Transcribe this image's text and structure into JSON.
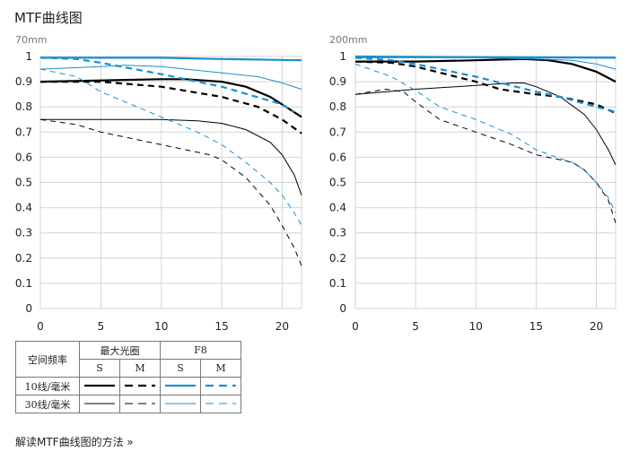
{
  "title": "MTF曲线图",
  "link": "解读MTF曲线图的方法 »",
  "colors": {
    "black": "#000000",
    "blue": "#1a8fd0",
    "grid": "#d4d4d4"
  },
  "legend": {
    "header_freq": "空间频率",
    "header_max": "最大光圈",
    "header_f8": "F8",
    "s": "S",
    "m": "M",
    "row10": "10线/毫米",
    "row30": "30线/毫米"
  },
  "chart_data": [
    {
      "type": "line",
      "title": "70mm",
      "xlim": [
        0,
        21.6
      ],
      "ylim": [
        0,
        1
      ],
      "xticks": [
        "0",
        "5",
        "10",
        "15",
        "20"
      ],
      "yticks": [
        "0",
        "0.1",
        "0.2",
        "0.3",
        "0.4",
        "0.5",
        "0.6",
        "0.7",
        "0.8",
        "0.9",
        "1"
      ],
      "series": [
        {
          "name": "最大光圈 S 10线/毫米",
          "color": "black",
          "width": 2.2,
          "dash": false,
          "points": [
            [
              0,
              0.9
            ],
            [
              5,
              0.905
            ],
            [
              10,
              0.91
            ],
            [
              12,
              0.91
            ],
            [
              15,
              0.9
            ],
            [
              17,
              0.88
            ],
            [
              19,
              0.84
            ],
            [
              20,
              0.81
            ],
            [
              21.6,
              0.76
            ]
          ]
        },
        {
          "name": "最大光圈 M 10线/毫米",
          "color": "black",
          "width": 2.2,
          "dash": true,
          "points": [
            [
              0,
              0.9
            ],
            [
              5,
              0.9
            ],
            [
              10,
              0.88
            ],
            [
              15,
              0.84
            ],
            [
              18,
              0.8
            ],
            [
              20,
              0.75
            ],
            [
              21.6,
              0.695
            ]
          ]
        },
        {
          "name": "最大光圈 S 30线/毫米",
          "color": "black",
          "width": 1,
          "dash": false,
          "points": [
            [
              0,
              0.75
            ],
            [
              5,
              0.75
            ],
            [
              10,
              0.75
            ],
            [
              13,
              0.745
            ],
            [
              15,
              0.735
            ],
            [
              17,
              0.71
            ],
            [
              19,
              0.66
            ],
            [
              20,
              0.61
            ],
            [
              21,
              0.53
            ],
            [
              21.6,
              0.45
            ]
          ]
        },
        {
          "name": "最大光圈 M 30线/毫米",
          "color": "black",
          "width": 1,
          "dash": true,
          "points": [
            [
              0,
              0.75
            ],
            [
              3,
              0.73
            ],
            [
              5,
              0.7
            ],
            [
              10,
              0.65
            ],
            [
              14,
              0.61
            ],
            [
              15,
              0.59
            ],
            [
              17,
              0.52
            ],
            [
              19,
              0.41
            ],
            [
              20,
              0.33
            ],
            [
              21,
              0.24
            ],
            [
              21.6,
              0.17
            ]
          ]
        },
        {
          "name": "F8 S 10线/毫米",
          "color": "blue",
          "width": 2.2,
          "dash": false,
          "points": [
            [
              0,
              0.995
            ],
            [
              10,
              0.995
            ],
            [
              15,
              0.99
            ],
            [
              21.6,
              0.985
            ]
          ]
        },
        {
          "name": "F8 M 10线/毫米",
          "color": "blue",
          "width": 2.2,
          "dash": true,
          "points": [
            [
              0,
              0.995
            ],
            [
              3,
              0.99
            ],
            [
              5,
              0.975
            ],
            [
              10,
              0.93
            ],
            [
              15,
              0.88
            ],
            [
              20,
              0.81
            ],
            [
              21,
              0.78
            ]
          ]
        },
        {
          "name": "F8 S 30线/毫米",
          "color": "blue",
          "width": 1,
          "dash": false,
          "points": [
            [
              0,
              0.95
            ],
            [
              5,
              0.96
            ],
            [
              7,
              0.965
            ],
            [
              10,
              0.96
            ],
            [
              15,
              0.935
            ],
            [
              18,
              0.92
            ],
            [
              20,
              0.895
            ],
            [
              21.6,
              0.87
            ]
          ]
        },
        {
          "name": "F8 M 30线/毫米",
          "color": "blue",
          "width": 1,
          "dash": true,
          "points": [
            [
              0,
              0.95
            ],
            [
              3,
              0.92
            ],
            [
              5,
              0.86
            ],
            [
              8,
              0.8
            ],
            [
              10,
              0.76
            ],
            [
              13,
              0.7
            ],
            [
              15,
              0.65
            ],
            [
              17,
              0.58
            ],
            [
              19,
              0.5
            ],
            [
              20,
              0.45
            ],
            [
              21,
              0.38
            ],
            [
              21.6,
              0.33
            ]
          ]
        }
      ]
    },
    {
      "type": "line",
      "title": "200mm",
      "xlim": [
        0,
        21.6
      ],
      "ylim": [
        0,
        1
      ],
      "xticks": [
        "0",
        "5",
        "10",
        "15",
        "20"
      ],
      "yticks": [
        "0",
        "0.1",
        "0.2",
        "0.3",
        "0.4",
        "0.5",
        "0.6",
        "0.7",
        "0.8",
        "0.9",
        "1"
      ],
      "series": [
        {
          "name": "最大光圈 S 10线/毫米",
          "color": "black",
          "width": 2.2,
          "dash": false,
          "points": [
            [
              0,
              0.98
            ],
            [
              5,
              0.98
            ],
            [
              10,
              0.985
            ],
            [
              14,
              0.99
            ],
            [
              16,
              0.985
            ],
            [
              18,
              0.97
            ],
            [
              20,
              0.94
            ],
            [
              21.6,
              0.9
            ]
          ]
        },
        {
          "name": "最大光圈 M 10线/毫米",
          "color": "black",
          "width": 2.2,
          "dash": true,
          "points": [
            [
              0,
              0.98
            ],
            [
              3,
              0.975
            ],
            [
              5,
              0.96
            ],
            [
              10,
              0.9
            ],
            [
              12,
              0.87
            ],
            [
              15,
              0.85
            ],
            [
              17,
              0.84
            ],
            [
              20,
              0.81
            ],
            [
              21.6,
              0.775
            ]
          ]
        },
        {
          "name": "最大光圈 S 30线/毫米",
          "color": "black",
          "width": 1,
          "dash": false,
          "points": [
            [
              0,
              0.85
            ],
            [
              5,
              0.87
            ],
            [
              10,
              0.885
            ],
            [
              13,
              0.895
            ],
            [
              14,
              0.895
            ],
            [
              15,
              0.88
            ],
            [
              17,
              0.84
            ],
            [
              19,
              0.77
            ],
            [
              20,
              0.71
            ],
            [
              21,
              0.63
            ],
            [
              21.6,
              0.57
            ]
          ]
        },
        {
          "name": "最大光圈 M 30线/毫米",
          "color": "black",
          "width": 1,
          "dash": true,
          "points": [
            [
              0,
              0.85
            ],
            [
              2.5,
              0.87
            ],
            [
              4,
              0.86
            ],
            [
              5,
              0.82
            ],
            [
              7,
              0.75
            ],
            [
              10,
              0.7
            ],
            [
              13,
              0.65
            ],
            [
              15,
              0.61
            ],
            [
              16,
              0.6
            ],
            [
              18,
              0.58
            ],
            [
              19,
              0.55
            ],
            [
              20,
              0.5
            ],
            [
              21,
              0.43
            ],
            [
              21.6,
              0.34
            ]
          ]
        },
        {
          "name": "F8 S 10线/毫米",
          "color": "blue",
          "width": 2.2,
          "dash": false,
          "points": [
            [
              0,
              1.0
            ],
            [
              21.6,
              0.995
            ]
          ]
        },
        {
          "name": "F8 M 10线/毫米",
          "color": "blue",
          "width": 2.2,
          "dash": true,
          "points": [
            [
              0,
              0.995
            ],
            [
              3,
              0.985
            ],
            [
              5,
              0.97
            ],
            [
              10,
              0.92
            ],
            [
              15,
              0.86
            ],
            [
              17,
              0.84
            ],
            [
              20,
              0.8
            ],
            [
              21.6,
              0.78
            ]
          ]
        },
        {
          "name": "F8 S 30线/毫米",
          "color": "blue",
          "width": 1,
          "dash": false,
          "points": [
            [
              0,
              0.995
            ],
            [
              10,
              0.995
            ],
            [
              15,
              0.99
            ],
            [
              18,
              0.985
            ],
            [
              20,
              0.97
            ],
            [
              21.6,
              0.95
            ]
          ]
        },
        {
          "name": "F8 M 30线/毫米",
          "color": "blue",
          "width": 1,
          "dash": true,
          "points": [
            [
              0,
              0.97
            ],
            [
              3,
              0.92
            ],
            [
              5,
              0.865
            ],
            [
              7,
              0.8
            ],
            [
              10,
              0.75
            ],
            [
              13,
              0.69
            ],
            [
              15,
              0.63
            ],
            [
              17,
              0.595
            ],
            [
              18,
              0.58
            ],
            [
              19,
              0.55
            ],
            [
              20,
              0.5
            ],
            [
              21,
              0.44
            ],
            [
              21.6,
              0.38
            ]
          ]
        }
      ]
    }
  ]
}
